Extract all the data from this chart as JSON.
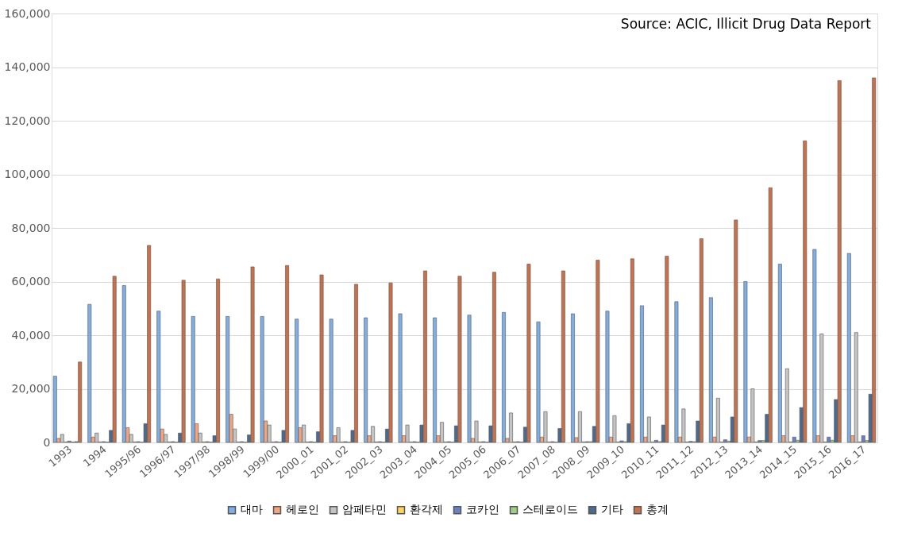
{
  "chart_data": {
    "type": "bar",
    "annotations": [
      "Source: ACIC, Illicit Drug Data Report"
    ],
    "categories": [
      "1993",
      "1994",
      "1995/96",
      "1996/97",
      "1997/98",
      "1998/99",
      "1999/00",
      "2000_01",
      "2001_02",
      "2002_03",
      "2003_04",
      "2004_05",
      "2005_06",
      "2006_07",
      "2007_08",
      "2008_09",
      "2009_10",
      "2010_11",
      "2011_12",
      "2012_13",
      "2013_14",
      "2014_15",
      "2015_16",
      "2016_17"
    ],
    "series": [
      {
        "name": "대마",
        "color": "#7eaee3",
        "values": [
          24700,
          51500,
          58500,
          49000,
          47000,
          47000,
          47000,
          46000,
          46000,
          46500,
          48000,
          46500,
          47500,
          48500,
          45000,
          48000,
          49000,
          51000,
          52500,
          54000,
          60000,
          66500,
          72000,
          70500
        ]
      },
      {
        "name": "헤로인",
        "color": "#f4a57e",
        "values": [
          1500,
          2000,
          5500,
          5000,
          7000,
          10500,
          8000,
          5500,
          2500,
          2500,
          2500,
          2500,
          1500,
          1500,
          2000,
          1800,
          2000,
          2000,
          2000,
          2000,
          2000,
          2500,
          2500,
          2500
        ]
      },
      {
        "name": "암페타민",
        "color": "#c4c4c4",
        "values": [
          3000,
          3500,
          3000,
          3000,
          3500,
          5000,
          6500,
          6500,
          5500,
          6000,
          6500,
          7500,
          8000,
          11000,
          11500,
          11500,
          10000,
          9500,
          12500,
          16500,
          20000,
          27500,
          40500,
          41000
        ]
      },
      {
        "name": "환각제",
        "color": "#ffd35c",
        "values": [
          200,
          200,
          200,
          200,
          200,
          200,
          200,
          200,
          200,
          200,
          200,
          200,
          200,
          200,
          200,
          200,
          200,
          200,
          200,
          200,
          200,
          200,
          200,
          200
        ]
      },
      {
        "name": "코카인",
        "color": "#6b7fc4",
        "values": [
          500,
          300,
          300,
          300,
          300,
          300,
          300,
          300,
          300,
          300,
          300,
          300,
          300,
          300,
          300,
          300,
          600,
          800,
          400,
          1000,
          700,
          2000,
          2000,
          2500
        ]
      },
      {
        "name": "스테로이드",
        "color": "#9fcf84",
        "values": [
          100,
          100,
          100,
          100,
          100,
          100,
          100,
          100,
          100,
          100,
          100,
          100,
          100,
          100,
          100,
          300,
          300,
          300,
          300,
          500,
          700,
          800,
          800,
          700
        ]
      },
      {
        "name": "기타",
        "color": "#4a6a90",
        "values": [
          300,
          4500,
          7000,
          3500,
          2500,
          2800,
          4500,
          4000,
          4500,
          5000,
          6500,
          6200,
          6200,
          5700,
          5200,
          6000,
          7000,
          6500,
          8000,
          9500,
          10500,
          13000,
          16000,
          18000
        ]
      },
      {
        "name": "총계",
        "color": "#c8704a",
        "values": [
          30000,
          62000,
          73500,
          60500,
          61000,
          65500,
          66000,
          62500,
          59000,
          59500,
          64000,
          62000,
          63500,
          66500,
          64000,
          68000,
          68500,
          69500,
          76000,
          83000,
          95000,
          112500,
          135000,
          136000
        ]
      }
    ],
    "ylim": [
      0,
      160000
    ],
    "yticks": [
      0,
      {
        "value": 20000,
        "label": "20,000"
      },
      {
        "value": 40000,
        "label": "40,000"
      },
      {
        "value": 60000,
        "label": "60,000"
      },
      {
        "value": 80000,
        "label": "80,000"
      },
      {
        "value": 100000,
        "label": "100,000"
      },
      {
        "value": 120000,
        "label": "120,000"
      },
      {
        "value": 140000,
        "label": "140,000"
      },
      {
        "value": 160000,
        "label": "160,000"
      }
    ],
    "grid": "y",
    "legend": "bottom"
  }
}
